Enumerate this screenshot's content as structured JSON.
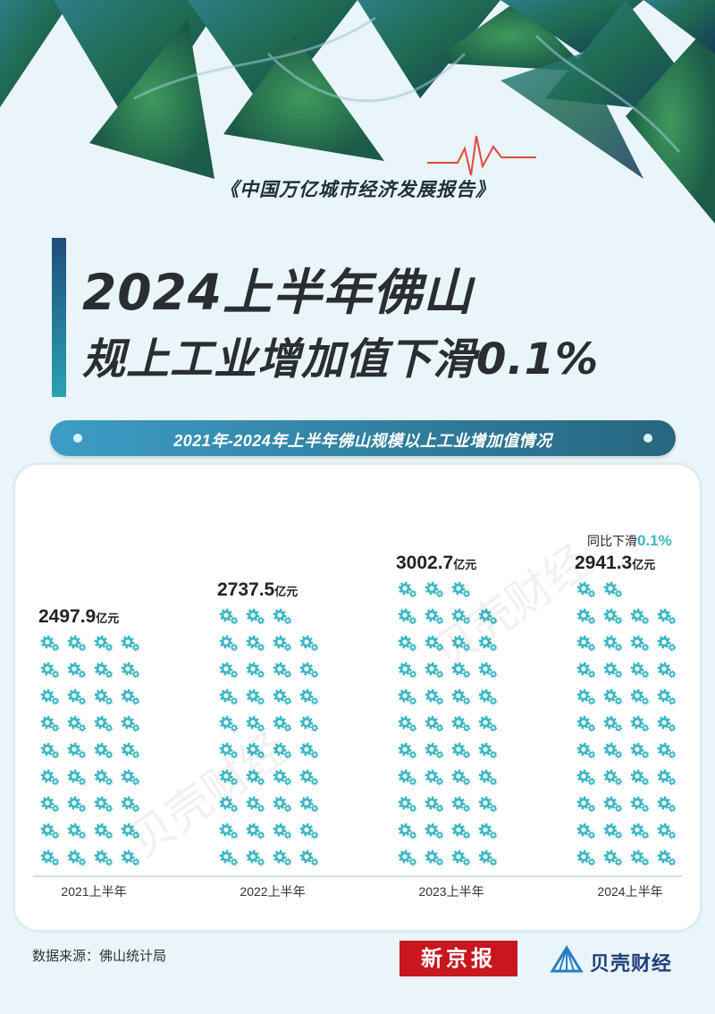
{
  "header": {
    "report_name": "《中国万亿城市经济发展报告》",
    "title_line1": "2024上半年佛山",
    "title_line2": "规上工业增加值下滑0.1%",
    "subtitle": "2021年-2024年上半年佛山规模以上工业增加值情况"
  },
  "chart_data": {
    "type": "bar",
    "title": "2021年-2024年上半年佛山规模以上工业增加值情况",
    "categories": [
      "2021上半年",
      "2022上半年",
      "2023上半年",
      "2024上半年"
    ],
    "values": [
      2497.9,
      2737.5,
      3002.7,
      2941.3
    ],
    "value_labels": [
      "2497.9",
      "2737.5",
      "3002.7",
      "2941.3"
    ],
    "unit": "亿元",
    "annotation": {
      "prefix": "同比下滑",
      "value": "0.1%"
    },
    "icon": "gear-icon",
    "icon_color": "#3db8c2"
  },
  "watermark": "贝壳财经",
  "footer": {
    "source": "数据来源：佛山统计局",
    "logo_xjb": "新京报",
    "logo_beike": "贝壳财经"
  },
  "colors": {
    "accent_teal": "#3db8c2",
    "title_dark": "#2a2e33",
    "pill_start": "#3d9dc6",
    "pill_end": "#27667f",
    "brand_red": "#c8171e",
    "brand_blue": "#20407a"
  }
}
